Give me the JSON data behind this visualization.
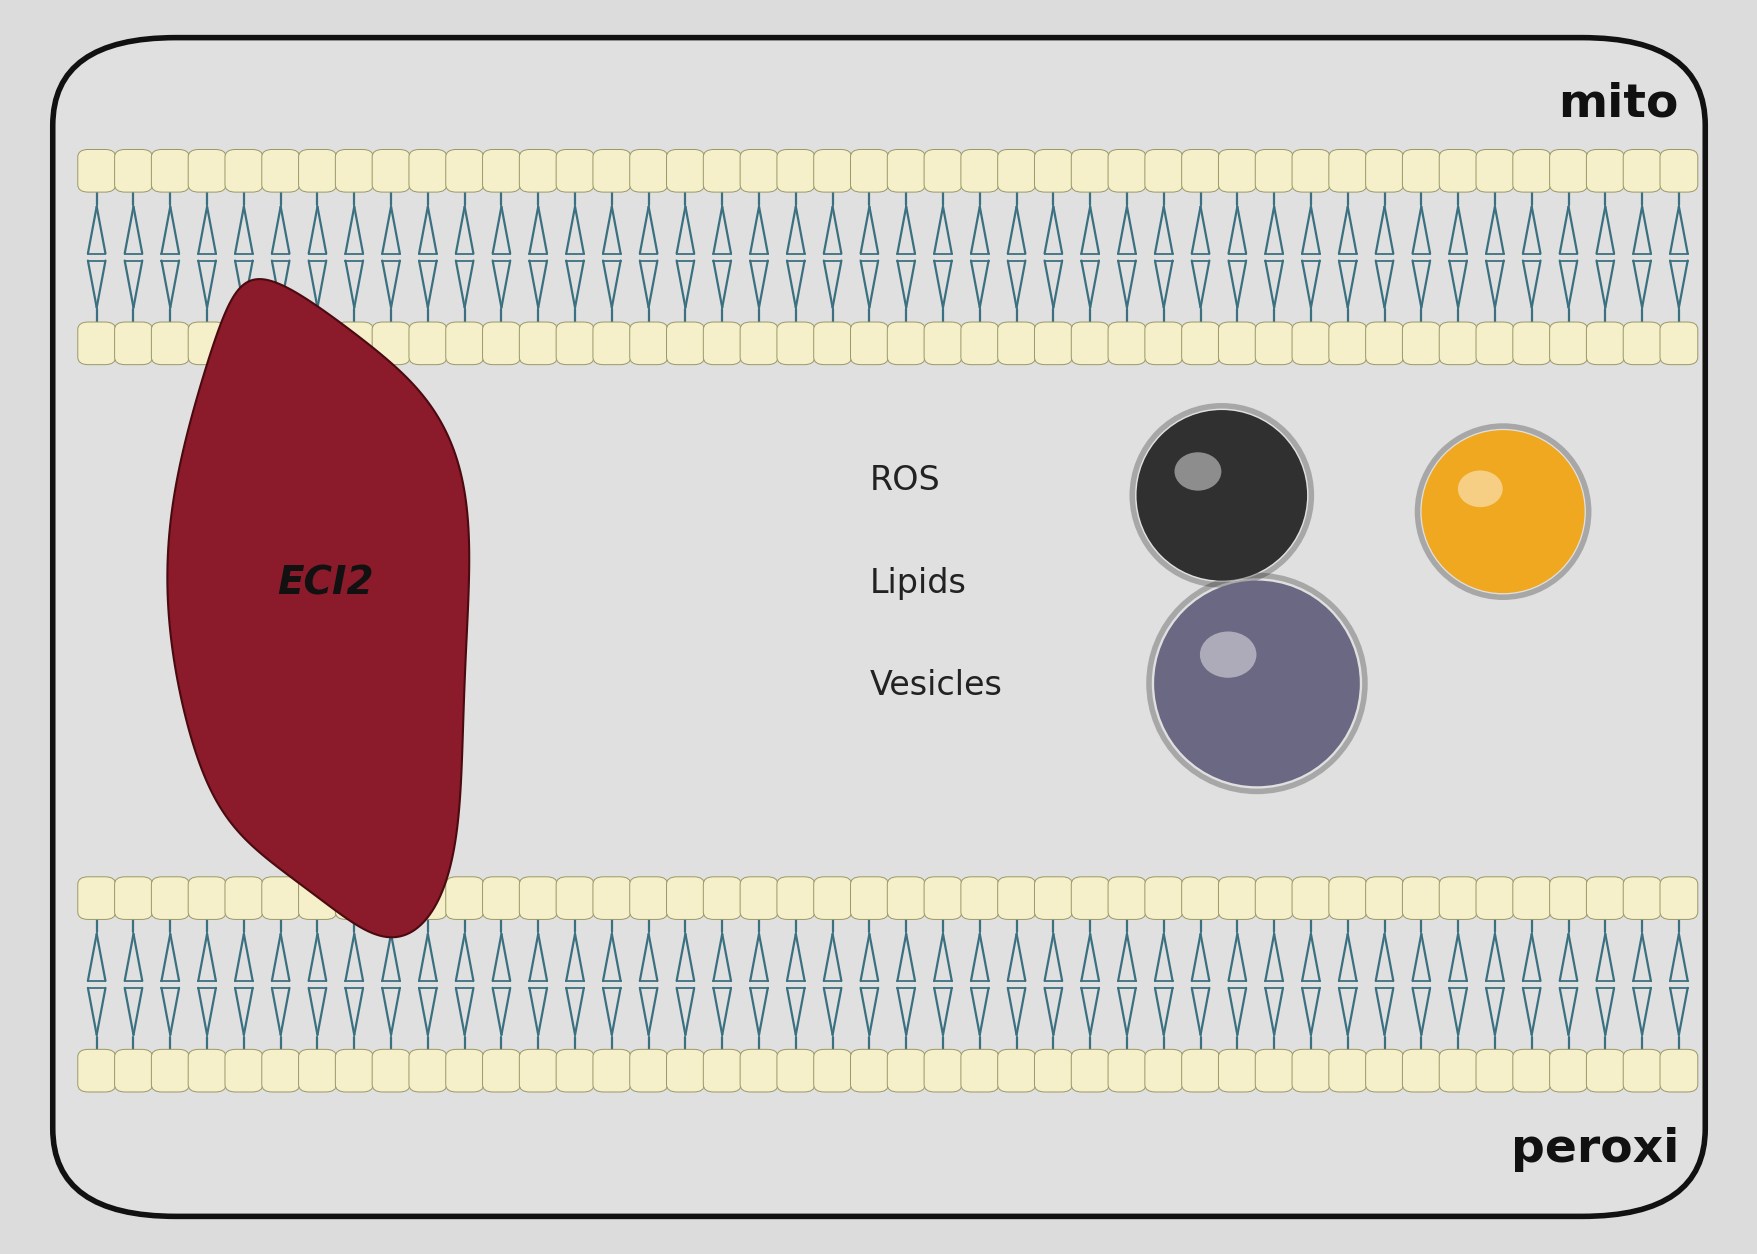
{
  "bg_color": "#dcdcdc",
  "inner_bg": "#e0e0e0",
  "border_color": "#111111",
  "membrane_head_color": "#f5efca",
  "membrane_head_edge": "#999966",
  "membrane_tail_color": "#3a7080",
  "eci2_color": "#8b1a2a",
  "eci2_edge_color": "#4a0a10",
  "eci2_text": "ECI2",
  "eci2_text_color": "#111111",
  "mito_label": "mito",
  "peroxi_label": "peroxi",
  "label_color": "#111111",
  "ros_text": "ROS",
  "lipids_text": "Lipids",
  "vesicles_text": "Vesicles",
  "legend_text_color": "#222222",
  "sphere_dark_color": "#303030",
  "sphere_yellow_color": "#f0a820",
  "sphere_purple_color": "#6a6882",
  "figsize": [
    17.58,
    12.54
  ],
  "dpi": 100
}
